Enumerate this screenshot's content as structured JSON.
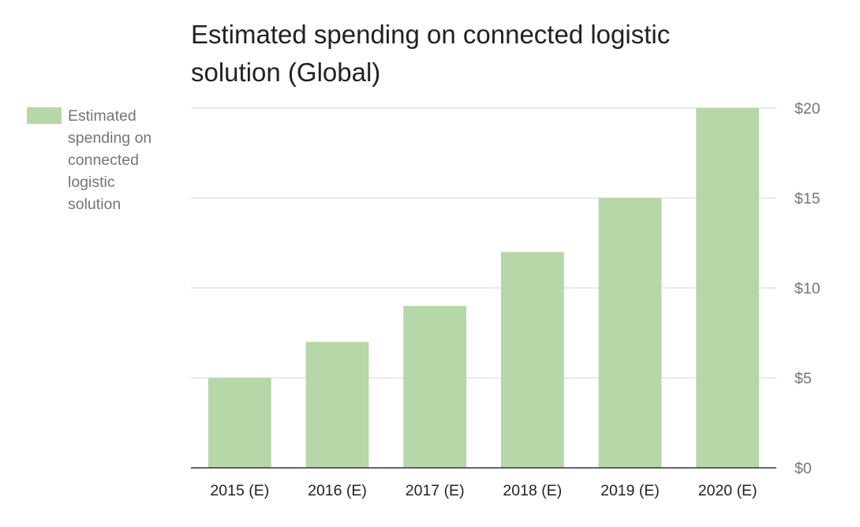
{
  "chart_data": {
    "type": "bar",
    "title_lines": [
      "Estimated spending on connected logistic",
      "solution (Global)"
    ],
    "categories": [
      "2015 (E)",
      "2016 (E)",
      "2017 (E)",
      "2018 (E)",
      "2019 (E)",
      "2020 (E)"
    ],
    "series": [
      {
        "name": "Estimated spending on connected logistic solution",
        "values": [
          5,
          7,
          9,
          12,
          15,
          20
        ]
      }
    ],
    "legend": {
      "position": "left",
      "lines": [
        "Estimated",
        "spending on",
        "connected",
        "logistic",
        "solution"
      ]
    },
    "yaxis": {
      "position": "right",
      "ticks": [
        0,
        5,
        10,
        15,
        20
      ],
      "tick_labels": [
        "$0",
        "$5",
        "$10",
        "$15",
        "$20"
      ]
    },
    "ylim": [
      0,
      20
    ],
    "grid": true,
    "colors": {
      "bar": "#b6d7a8"
    }
  }
}
